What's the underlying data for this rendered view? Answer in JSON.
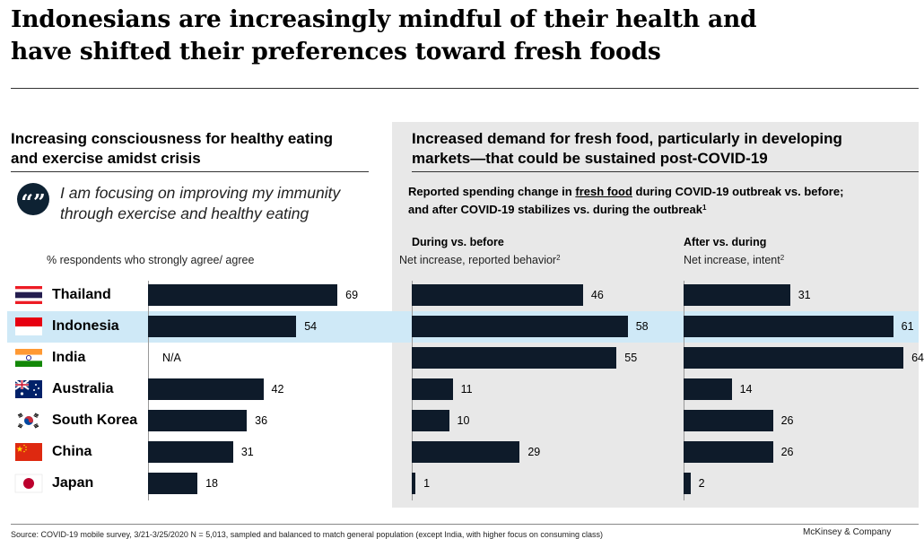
{
  "title_line1": "Indonesians are increasingly mindful of their health and",
  "title_line2": "have shifted their preferences toward fresh foods",
  "left_panel": {
    "heading_line1": "Increasing consciousness for healthy eating",
    "heading_line2": "and exercise amidst crisis",
    "quote_icon": "quote-icon",
    "quote_line1": "I am focusing on improving my immunity",
    "quote_line2": "through exercise and healthy eating",
    "measure_label": "% respondents who strongly agree/ agree"
  },
  "right_panel": {
    "heading_line1": "Increased demand for fresh food, particularly in developing",
    "heading_line2": "markets—that could be sustained post-COVID-19",
    "sub_pre": "Reported spending change in ",
    "sub_underlined": "fresh food",
    "sub_post": " during COVID-19 outbreak vs. before;",
    "sub_line2": "and after COVID-19 stabilizes vs. during the outbreak",
    "sub_sup": "1",
    "during_title": "During vs. before",
    "during_sub": "Net increase, reported behavior",
    "during_sup": "2",
    "after_title": "After vs. during",
    "after_sub": "Net increase, intent",
    "after_sup": "2"
  },
  "colors": {
    "bar": "#0e1b2a",
    "highlight": "#cfe9f7",
    "panel_grey": "#e8e8e8"
  },
  "highlighted_country": "Indonesia",
  "chart_data": [
    {
      "type": "bar",
      "orientation": "horizontal",
      "categories": [
        "Thailand",
        "Indonesia",
        "India",
        "Australia",
        "South Korea",
        "China",
        "Japan"
      ],
      "values": [
        69,
        54,
        null,
        42,
        36,
        31,
        18
      ],
      "value_labels": [
        "69",
        "54",
        "N/A",
        "42",
        "36",
        "31",
        "18"
      ],
      "xlim": [
        0,
        100
      ]
    },
    {
      "type": "bar",
      "orientation": "horizontal",
      "title": "During vs. before",
      "categories": [
        "Thailand",
        "Indonesia",
        "India",
        "Australia",
        "South Korea",
        "China",
        "Japan"
      ],
      "values": [
        46,
        58,
        55,
        11,
        10,
        29,
        1
      ],
      "xlim": [
        0,
        100
      ]
    },
    {
      "type": "bar",
      "orientation": "horizontal",
      "title": "After vs. during",
      "categories": [
        "Thailand",
        "Indonesia",
        "India",
        "Australia",
        "South Korea",
        "China",
        "Japan"
      ],
      "values": [
        31,
        61,
        64,
        14,
        26,
        26,
        2
      ],
      "xlim": [
        0,
        100
      ]
    }
  ],
  "footer": {
    "source": "Source: COVID-19 mobile survey, 3/21-3/25/2020 N = 5,013, sampled and balanced to match general population (except India, with higher focus on consuming class)",
    "brand": "McKinsey & Company"
  }
}
